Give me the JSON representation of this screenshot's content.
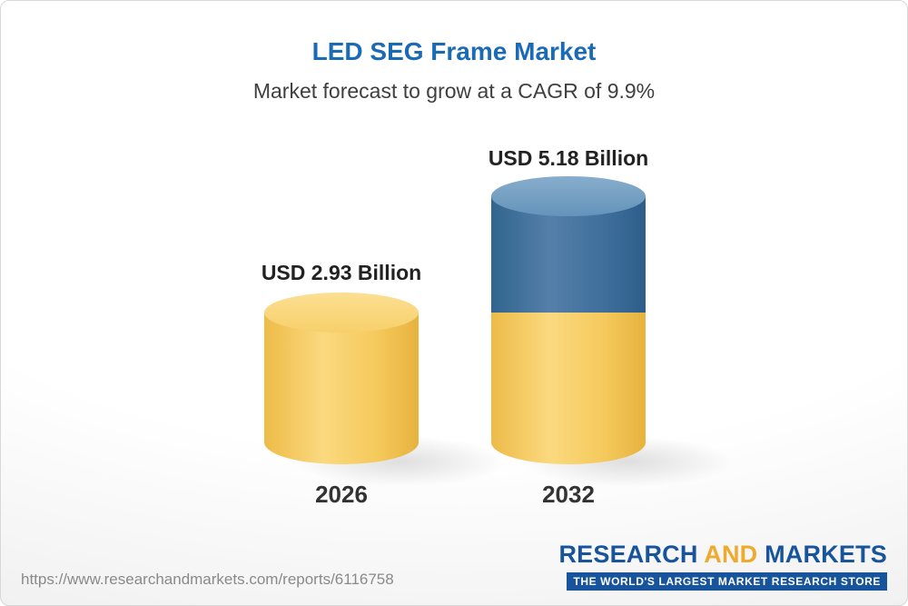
{
  "chart_data": {
    "type": "bar",
    "title": "LED SEG Frame Market",
    "subtitle": "Market forecast to grow at a CAGR of 9.9%",
    "categories": [
      "2026",
      "2032"
    ],
    "values": [
      2.93,
      5.18
    ],
    "value_labels": [
      "USD 2.93 Billion",
      "USD 5.18 Billion"
    ],
    "unit": "USD Billion",
    "cagr_percent": 9.9,
    "ylim": [
      0,
      5.18
    ],
    "legend": "none",
    "grid": "off",
    "note": "2032 cylinder is stacked: gold base equal to 2026 value plus blue growth segment on top",
    "colors": {
      "title_blue": "#1a6ab5",
      "gold_bar": "#f5ca5d",
      "blue_bar": "#3f6f9c",
      "label_text": "#222222"
    }
  },
  "footer": {
    "url": "https://www.researchandmarkets.com/reports/6116758",
    "logo": {
      "word1": "RESEARCH",
      "word2": "AND",
      "word3": "MARKETS",
      "tagline": "THE WORLD'S LARGEST MARKET RESEARCH STORE",
      "blue": "#17549b",
      "gold": "#efaa2e"
    }
  }
}
